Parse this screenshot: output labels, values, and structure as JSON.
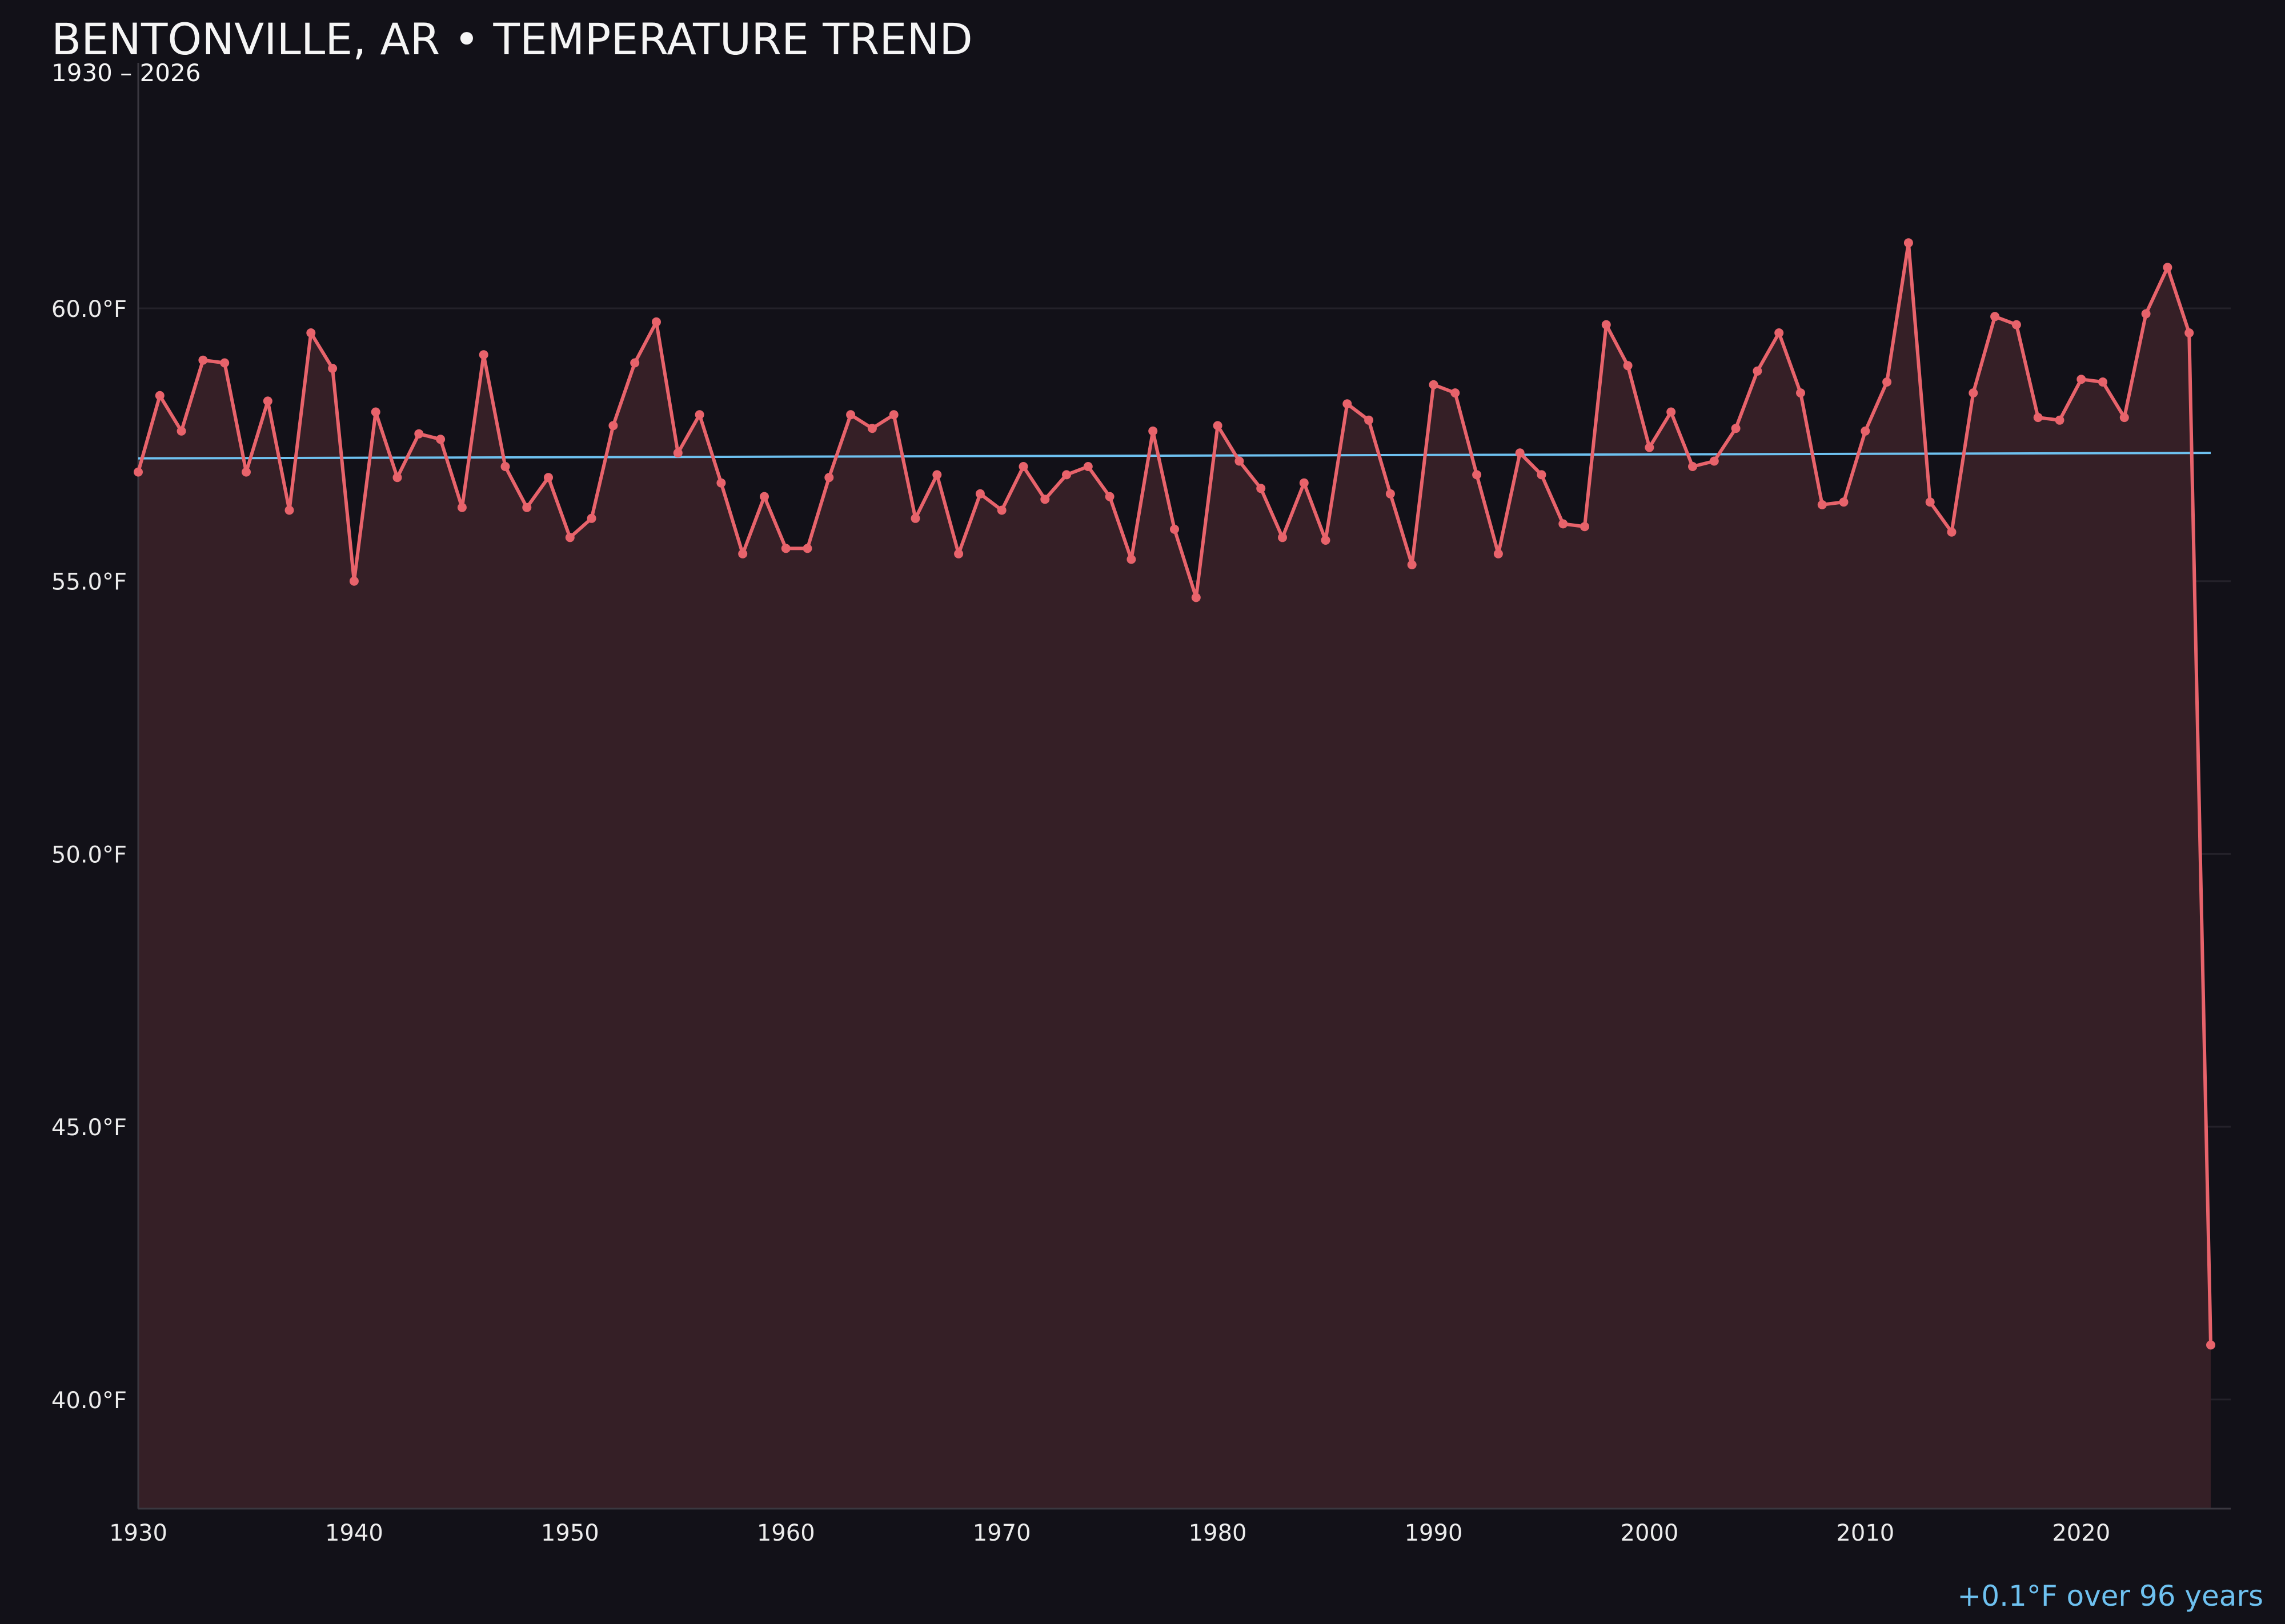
{
  "chart_data": {
    "type": "line",
    "title": "BENTONVILLE, AR • TEMPERATURE TREND",
    "subtitle": "1930 – 2026",
    "xlabel": "",
    "ylabel": "",
    "xlim": [
      1930,
      2026
    ],
    "ylim": [
      38.0,
      64.5
    ],
    "x_ticks": [
      1930,
      1940,
      1950,
      1960,
      1970,
      1980,
      1990,
      2000,
      2010,
      2020
    ],
    "x_tick_labels": [
      "1930",
      "1940",
      "1950",
      "1960",
      "1970",
      "1980",
      "1990",
      "2000",
      "2010",
      "2020"
    ],
    "y_ticks": [
      40,
      45,
      50,
      55,
      60
    ],
    "y_tick_labels": [
      "40.0°F",
      "45.0°F",
      "50.0°F",
      "55.0°F",
      "60.0°F"
    ],
    "grid": true,
    "legend": "none",
    "series": [
      {
        "kind": "line-with-markers-and-area",
        "color": "#e8636b",
        "x": [
          1930,
          1931,
          1932,
          1933,
          1934,
          1935,
          1936,
          1937,
          1938,
          1939,
          1940,
          1941,
          1942,
          1943,
          1944,
          1945,
          1946,
          1947,
          1948,
          1949,
          1950,
          1951,
          1952,
          1953,
          1954,
          1955,
          1956,
          1957,
          1958,
          1959,
          1960,
          1961,
          1962,
          1963,
          1964,
          1965,
          1966,
          1967,
          1968,
          1969,
          1970,
          1971,
          1972,
          1973,
          1974,
          1975,
          1976,
          1977,
          1978,
          1979,
          1980,
          1981,
          1982,
          1983,
          1984,
          1985,
          1986,
          1987,
          1988,
          1989,
          1990,
          1991,
          1992,
          1993,
          1994,
          1995,
          1996,
          1997,
          1998,
          1999,
          2000,
          2001,
          2002,
          2003,
          2004,
          2005,
          2006,
          2007,
          2008,
          2009,
          2010,
          2011,
          2012,
          2013,
          2014,
          2015,
          2016,
          2017,
          2018,
          2019,
          2020,
          2021,
          2022,
          2023,
          2024,
          2025,
          2026
        ],
        "values": [
          57.0,
          58.4,
          57.75,
          59.05,
          59.0,
          57.0,
          58.3,
          56.3,
          59.55,
          58.9,
          55.0,
          58.1,
          56.9,
          57.7,
          57.6,
          56.35,
          59.15,
          57.1,
          56.35,
          56.9,
          55.8,
          56.15,
          57.85,
          59.0,
          59.75,
          57.35,
          58.05,
          56.8,
          55.5,
          56.55,
          55.6,
          55.6,
          56.9,
          58.05,
          57.8,
          58.05,
          56.15,
          56.95,
          55.5,
          56.6,
          56.3,
          57.1,
          56.5,
          56.95,
          57.1,
          56.55,
          55.4,
          57.75,
          55.95,
          54.7,
          57.85,
          57.2,
          56.7,
          55.8,
          56.8,
          55.75,
          58.25,
          57.95,
          56.6,
          55.3,
          58.6,
          58.45,
          56.95,
          55.5,
          57.35,
          56.95,
          56.05,
          56.0,
          59.7,
          58.95,
          57.45,
          58.1,
          57.1,
          57.2,
          57.8,
          58.85,
          59.55,
          58.45,
          56.4,
          56.45,
          57.75,
          58.65,
          61.2,
          56.45,
          55.9,
          58.45,
          59.85,
          59.7,
          58.0,
          57.95,
          58.7,
          58.65,
          58.0,
          59.9,
          60.75,
          59.55,
          41.0
        ]
      },
      {
        "kind": "trend-line",
        "color": "#6ec1f0",
        "x": [
          1930,
          2026
        ],
        "values": [
          57.25,
          57.35
        ]
      }
    ],
    "annotation": "+0.1°F over 96 years"
  },
  "colors": {
    "background": "#121118",
    "area_fill": "#351f26",
    "series": "#e8636b",
    "trend": "#6ec1f0",
    "grid": "#24222a",
    "axis": "#3a3840",
    "text": "#ececec"
  }
}
